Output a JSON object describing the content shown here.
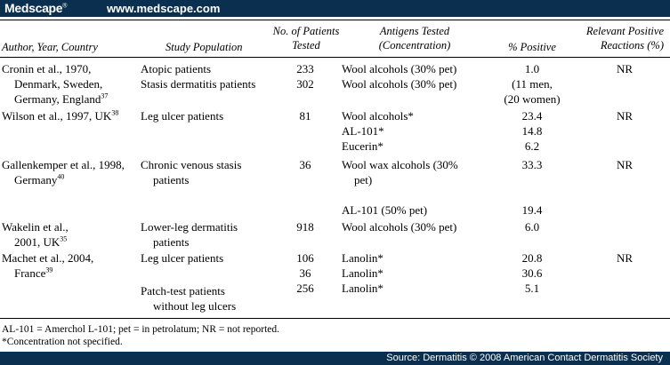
{
  "topbar": {
    "brand": "Medscape",
    "brand_mark": "®",
    "url": "www.medscape.com"
  },
  "headers": {
    "author": "Author, Year, Country",
    "population": "Study Population",
    "patients_1": "No. of Patients",
    "patients_2": "Tested",
    "antigens_1": "Antigens Tested",
    "antigens_2": "(Concentration)",
    "positive": "% Positive",
    "relevant_1": "Relevant Positive",
    "relevant_2": "Reactions (%)"
  },
  "rows": {
    "cronin": {
      "author_1": "Cronin et al., 1970,",
      "author_2": "Denmark, Sweden,",
      "author_3": "Germany, England",
      "ref": "37",
      "pop_1": "Atopic patients",
      "pop_2": "Stasis dermatitis patients",
      "n_1": "233",
      "n_2": "302",
      "ag_1": "Wool alcohols (30% pet)",
      "ag_2": "Wool alcohols (30% pet)",
      "pct_1": "1.0",
      "pct_2": "(11 men,",
      "pct_3": "(20 women)",
      "rel": "NR"
    },
    "wilson": {
      "author": "Wilson et al., 1997, UK",
      "ref": "38",
      "pop": "Leg ulcer patients",
      "n": "81",
      "ag_1": "Wool alcohols*",
      "ag_2": "AL-101*",
      "ag_3": "Eucerin*",
      "pct_1": "23.4",
      "pct_2": "14.8",
      "pct_3": "6.2",
      "rel": "NR"
    },
    "gallenkemper": {
      "author_1": "Gallenkemper et al., 1998,",
      "author_2": "Germany",
      "ref": "40",
      "pop_1": "Chronic venous stasis",
      "pop_2": "patients",
      "n": "36",
      "ag_1": "Wool wax alcohols (30%",
      "ag_2": "pet)",
      "ag_3": "AL-101 (50% pet)",
      "pct_1": "33.3",
      "pct_2": "19.4",
      "rel": "NR"
    },
    "wakelin": {
      "author_1": "Wakelin et al.,",
      "author_2": "2001, UK",
      "ref": "35",
      "pop_1": "Lower-leg dermatitis",
      "pop_2": "patients",
      "n": "918",
      "ag": "Wool alcohols (30% pet)",
      "pct": "6.0"
    },
    "machet": {
      "author_1": "Machet et al., 2004,",
      "author_2": "France",
      "ref": "39",
      "pop_1": "Leg ulcer patients",
      "pop_2": "Patch-test patients",
      "pop_3": "without leg ulcers",
      "n_1": "106",
      "n_2": "36",
      "n_3": "256",
      "ag_1": "Lanolin*",
      "ag_2": "Lanolin*",
      "ag_3": "Lanolin*",
      "pct_1": "20.8",
      "pct_2": "30.6",
      "pct_3": "5.1",
      "rel": "NR"
    }
  },
  "footnotes": {
    "abbrev": "AL-101 = Amerchol L-101; pet = in petrolatum; NR = not reported.",
    "concentration": "*Concentration not specified."
  },
  "source": "Source: Dermatitis © 2008 American Contact Dermatitis Society"
}
